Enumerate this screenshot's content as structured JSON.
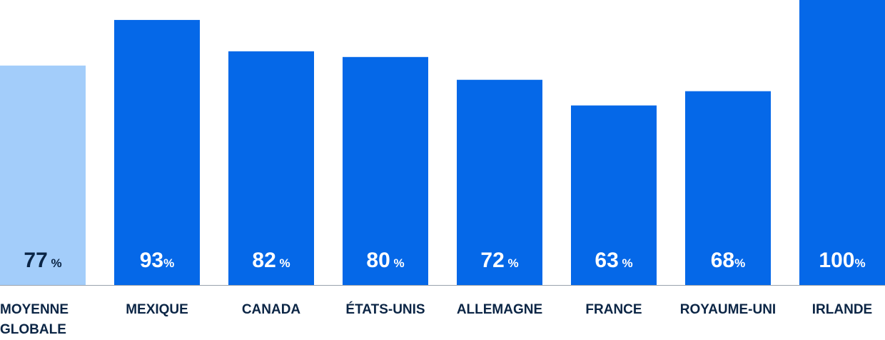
{
  "chart_data": {
    "type": "bar",
    "categories": [
      "MOYENNE GLOBALE",
      "MEXIQUE",
      "CANADA",
      "ÉTATS-UNIS",
      "ALLEMAGNE",
      "FRANCE",
      "ROYAUME-UNI",
      "IRLANDE"
    ],
    "values": [
      77,
      93,
      82,
      80,
      72,
      63,
      68,
      100
    ],
    "value_labels": [
      "77 %",
      "93%",
      "82 %",
      "80 %",
      "72 %",
      "63 %",
      "68%",
      "100%"
    ],
    "colors": [
      "#a3cdfa",
      "#0568e8",
      "#0568e8",
      "#0568e8",
      "#0568e8",
      "#0568e8",
      "#0568e8",
      "#0568e8"
    ],
    "label_colors": [
      "#0b2545",
      "#ffffff",
      "#ffffff",
      "#ffffff",
      "#ffffff",
      "#ffffff",
      "#ffffff",
      "#ffffff"
    ],
    "ylim": [
      0,
      100
    ]
  }
}
